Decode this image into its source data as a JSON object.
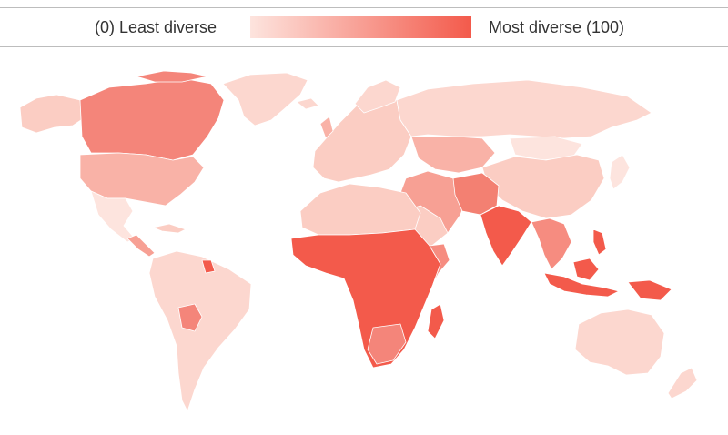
{
  "legend": {
    "min_label": "(0) Least diverse",
    "max_label": "Most diverse (100)",
    "scale": [
      0,
      100
    ],
    "color_low": "#fde4de",
    "color_high": "#f35a4b"
  },
  "map": {
    "type": "choropleth",
    "projection": "world",
    "border_color": "#ffffff"
  }
}
